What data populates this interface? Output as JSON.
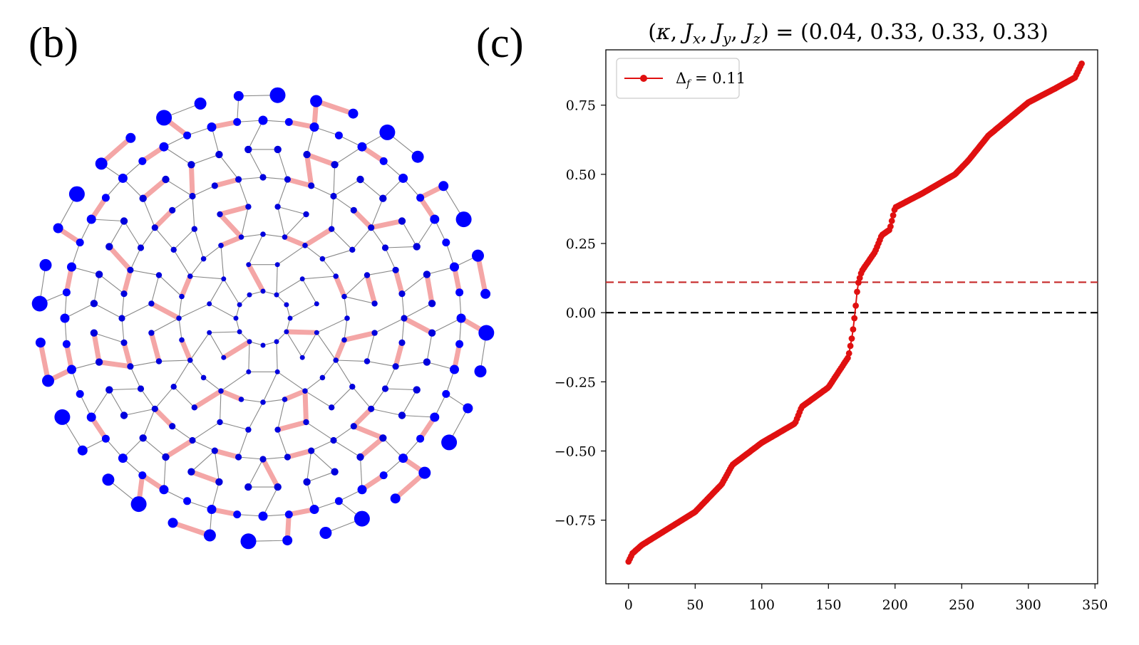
{
  "panels": {
    "left_label": "(b)",
    "right_label": "(c)"
  },
  "lattice": {
    "site_color": "#0000dd",
    "bond_color": "#888888",
    "highlight_color": "#f4a6a6",
    "edge_site_color": "#0000ff"
  },
  "chart_data": {
    "type": "line",
    "title": "(κ, Jx, Jy, Jz) = (0.04, 0.33, 0.33, 0.33)",
    "title_parts": {
      "open": "(",
      "kappa": "κ",
      "sep1": ", ",
      "J": "J",
      "sub_x": "x",
      "sub_y": "y",
      "sub_z": "z",
      "sep2": ", ",
      "sep3": ", ",
      "eq": ") = ",
      "values": "(0.04, 0.33, 0.33, 0.33)"
    },
    "legend": {
      "label": "Δf = 0.11",
      "delta": "Δ",
      "sub": "f",
      "rest": " = 0.11",
      "placement": "top-left"
    },
    "xlim": [
      -17,
      352
    ],
    "ylim": [
      -0.98,
      0.95
    ],
    "xticks": [
      0,
      50,
      100,
      150,
      200,
      250,
      300,
      350
    ],
    "yticks": [
      -0.75,
      -0.5,
      -0.25,
      0.0,
      0.25,
      0.5,
      0.75
    ],
    "xtick_labels": [
      "0",
      "50",
      "100",
      "150",
      "200",
      "250",
      "300",
      "350"
    ],
    "ytick_labels": [
      "−0.75",
      "−0.50",
      "−0.25",
      "0.00",
      "0.25",
      "0.50",
      "0.75"
    ],
    "hlines": [
      {
        "y": 0.11,
        "color": "#c62828",
        "style": "dashed"
      },
      {
        "y": 0.0,
        "color": "#000000",
        "style": "dashed"
      }
    ],
    "series": [
      {
        "name": "Δf = 0.11",
        "color": "#e01010",
        "n": 340,
        "anchors_x": [
          0,
          3,
          10,
          30,
          50,
          70,
          78,
          100,
          125,
          130,
          150,
          165,
          168,
          170,
          172,
          175,
          185,
          190,
          196,
          200,
          220,
          245,
          255,
          270,
          290,
          300,
          320,
          335,
          340
        ],
        "anchors_y": [
          -0.9,
          -0.87,
          -0.84,
          -0.78,
          -0.72,
          -0.62,
          -0.55,
          -0.47,
          -0.4,
          -0.34,
          -0.27,
          -0.16,
          -0.08,
          0.0,
          0.1,
          0.15,
          0.22,
          0.28,
          0.3,
          0.38,
          0.43,
          0.5,
          0.55,
          0.64,
          0.72,
          0.76,
          0.81,
          0.85,
          0.9
        ]
      }
    ]
  }
}
